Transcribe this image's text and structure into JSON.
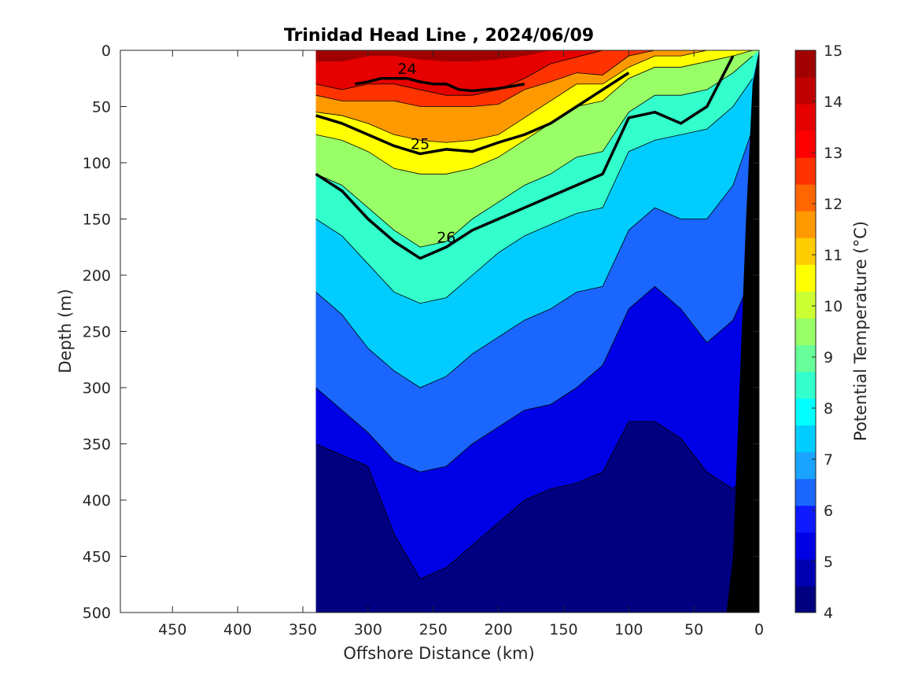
{
  "chart_data": {
    "type": "contour",
    "title": "Trinidad Head Line , 2024/06/09",
    "xlabel": "Offshore Distance (km)",
    "ylabel": "Depth (m)",
    "colorbar_label": "Potential Temperature (°C)",
    "xlim": [
      490,
      0
    ],
    "ylim": [
      500,
      0
    ],
    "x_ticks": [
      450,
      400,
      350,
      300,
      250,
      200,
      150,
      100,
      50,
      0
    ],
    "y_ticks": [
      0,
      50,
      100,
      150,
      200,
      250,
      300,
      350,
      400,
      450,
      500
    ],
    "colorbar_ticks": [
      4,
      5,
      6,
      7,
      8,
      9,
      10,
      11,
      12,
      13,
      14,
      15
    ],
    "colorbar_range": [
      4,
      15
    ],
    "colormap": [
      "#000080",
      "#0000b3",
      "#0000e6",
      "#0d1aff",
      "#1a66ff",
      "#1aa3ff",
      "#00ccff",
      "#00ffff",
      "#33ffcc",
      "#66ff99",
      "#99ff66",
      "#ccff33",
      "#ffff00",
      "#ffcc00",
      "#ff9900",
      "#ff6600",
      "#ff3300",
      "#ff0000",
      "#e60000",
      "#c00000",
      "#a00000"
    ],
    "data_extent_km": [
      340,
      0
    ],
    "bathymetry_color": "#000000",
    "isotherm_depths_m": {
      "x_km": [
        340,
        320,
        300,
        280,
        260,
        240,
        220,
        200,
        180,
        160,
        140,
        120,
        100,
        80,
        60,
        40,
        20,
        5
      ],
      "t14": [
        10,
        10,
        5,
        5,
        8,
        10,
        10,
        8,
        5,
        0,
        0,
        0,
        0,
        0,
        0,
        0,
        0,
        0
      ],
      "t13": [
        30,
        35,
        30,
        30,
        35,
        40,
        40,
        35,
        25,
        12,
        6,
        0,
        0,
        0,
        0,
        0,
        0,
        0
      ],
      "t12": [
        40,
        45,
        45,
        45,
        50,
        50,
        50,
        48,
        35,
        28,
        20,
        22,
        5,
        0,
        0,
        0,
        0,
        0
      ],
      "t11": [
        55,
        58,
        65,
        75,
        80,
        82,
        80,
        75,
        60,
        45,
        30,
        30,
        15,
        5,
        5,
        0,
        0,
        0
      ],
      "t10": [
        75,
        80,
        90,
        105,
        110,
        110,
        105,
        95,
        80,
        65,
        50,
        45,
        25,
        15,
        15,
        10,
        5,
        0
      ],
      "t9": [
        110,
        120,
        140,
        160,
        175,
        170,
        150,
        135,
        120,
        110,
        95,
        90,
        55,
        40,
        40,
        35,
        20,
        5
      ],
      "t8": [
        150,
        165,
        190,
        215,
        225,
        220,
        200,
        180,
        165,
        155,
        145,
        140,
        90,
        80,
        75,
        70,
        50,
        25
      ],
      "t7": [
        215,
        235,
        265,
        285,
        300,
        290,
        270,
        255,
        240,
        230,
        215,
        210,
        160,
        140,
        150,
        150,
        120,
        70
      ],
      "t6": [
        300,
        320,
        340,
        365,
        375,
        370,
        350,
        335,
        320,
        315,
        300,
        280,
        230,
        210,
        230,
        260,
        240,
        200
      ],
      "t5": [
        350,
        360,
        370,
        430,
        470,
        460,
        440,
        420,
        400,
        390,
        385,
        375,
        330,
        330,
        345,
        375,
        390,
        370
      ]
    },
    "density_contours": [
      {
        "label": "24",
        "depth_m": {
          "x_km": [
            310,
            300,
            290,
            280,
            270,
            260,
            250,
            240,
            230,
            220,
            210,
            200,
            190,
            180
          ],
          "y": [
            30,
            28,
            25,
            25,
            25,
            28,
            30,
            30,
            35,
            36,
            35,
            34,
            32,
            30
          ]
        }
      },
      {
        "label": "25",
        "depth_m": {
          "x_km": [
            340,
            320,
            300,
            280,
            260,
            240,
            220,
            200,
            180,
            160,
            140,
            120,
            100
          ],
          "y": [
            58,
            65,
            75,
            85,
            92,
            88,
            90,
            82,
            75,
            65,
            50,
            35,
            20
          ]
        }
      },
      {
        "label": "26",
        "depth_m": {
          "x_km": [
            340,
            320,
            300,
            280,
            260,
            240,
            220,
            200,
            180,
            160,
            140,
            120,
            100,
            80,
            60,
            40,
            20
          ],
          "y": [
            110,
            125,
            150,
            170,
            185,
            175,
            160,
            150,
            140,
            130,
            120,
            110,
            60,
            55,
            65,
            50,
            5
          ]
        }
      }
    ]
  }
}
